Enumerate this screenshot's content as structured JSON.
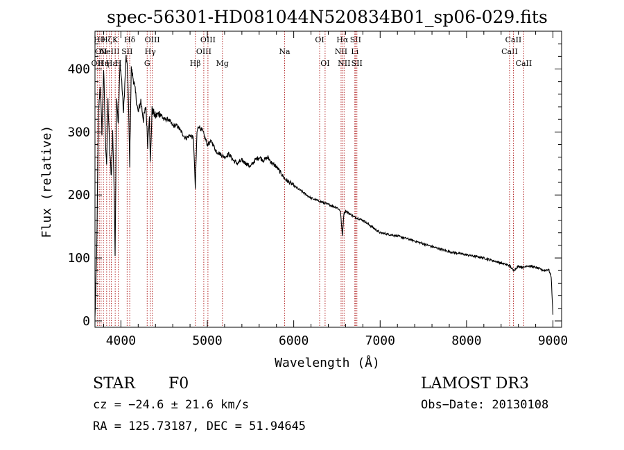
{
  "chart_data": {
    "type": "line",
    "title": "spec-56301-HD081044N520834B01_sp06-029.fits",
    "xlabel": "Wavelength (Å)",
    "ylabel": "Flux (relative)",
    "xlim": [
      3700,
      9100
    ],
    "ylim": [
      -10,
      460
    ],
    "xticks": [
      4000,
      5000,
      6000,
      7000,
      8000,
      9000
    ],
    "xtick_labels": [
      "4000",
      "5000",
      "6000",
      "7000",
      "8000",
      "9000"
    ],
    "yticks": [
      0,
      100,
      200,
      300,
      400
    ],
    "ytick_labels": [
      "0",
      "100",
      "200",
      "300",
      "400"
    ],
    "series": [
      {
        "name": "spectrum",
        "x": [
          3700,
          3720,
          3740,
          3760,
          3780,
          3800,
          3820,
          3835,
          3850,
          3870,
          3889,
          3905,
          3920,
          3933,
          3950,
          3970,
          3990,
          4010,
          4030,
          4060,
          4080,
          4102,
          4120,
          4150,
          4180,
          4200,
          4230,
          4260,
          4290,
          4310,
          4330,
          4340,
          4360,
          4380,
          4400,
          4450,
          4500,
          4550,
          4600,
          4650,
          4700,
          4750,
          4800,
          4840,
          4861,
          4880,
          4900,
          4950,
          5000,
          5050,
          5100,
          5150,
          5200,
          5250,
          5300,
          5350,
          5400,
          5450,
          5500,
          5550,
          5600,
          5650,
          5700,
          5750,
          5800,
          5850,
          5900,
          5950,
          6000,
          6100,
          6200,
          6300,
          6400,
          6500,
          6540,
          6563,
          6580,
          6600,
          6650,
          6700,
          6800,
          6900,
          7000,
          7200,
          7400,
          7600,
          7800,
          8000,
          8200,
          8400,
          8498,
          8542,
          8600,
          8662,
          8700,
          8800,
          8900,
          8950,
          8980,
          9000
        ],
        "y": [
          5,
          110,
          330,
          375,
          300,
          400,
          290,
          250,
          350,
          270,
          230,
          300,
          220,
          110,
          360,
          310,
          410,
          380,
          330,
          420,
          390,
          250,
          400,
          380,
          350,
          330,
          350,
          320,
          340,
          280,
          330,
          250,
          335,
          330,
          325,
          330,
          320,
          320,
          310,
          310,
          300,
          290,
          295,
          290,
          210,
          300,
          310,
          300,
          280,
          285,
          270,
          265,
          260,
          265,
          255,
          250,
          255,
          250,
          245,
          255,
          260,
          255,
          260,
          250,
          245,
          235,
          225,
          220,
          215,
          205,
          195,
          190,
          185,
          180,
          175,
          135,
          170,
          175,
          170,
          165,
          160,
          150,
          140,
          135,
          127,
          118,
          110,
          105,
          100,
          92,
          88,
          80,
          87,
          85,
          88,
          85,
          80,
          82,
          70,
          10
        ]
      }
    ],
    "line_markers": [
      {
        "wl": 3727,
        "label": "OII",
        "row": 3
      },
      {
        "wl": 3750,
        "label": "Hθ",
        "row": 1
      },
      {
        "wl": 3771,
        "label": "OII",
        "row": 2
      },
      {
        "wl": 3798,
        "label": "Hη",
        "row": 3
      },
      {
        "wl": 3835,
        "label": "Hζ",
        "row": 1
      },
      {
        "wl": 3869,
        "label": "NeIII",
        "row": 2
      },
      {
        "wl": 3889,
        "label": "Hε",
        "row": 3
      },
      {
        "wl": 3934,
        "label": "K",
        "row": 1
      },
      {
        "wl": 3970,
        "label": "H",
        "row": 3
      },
      {
        "wl": 4072,
        "label": "SII",
        "row": 2
      },
      {
        "wl": 4102,
        "label": "Hδ",
        "row": 1
      },
      {
        "wl": 4304,
        "label": "G",
        "row": 3
      },
      {
        "wl": 4340,
        "label": "Hγ",
        "row": 2
      },
      {
        "wl": 4363,
        "label": "OIII",
        "row": 1
      },
      {
        "wl": 4861,
        "label": "Hβ",
        "row": 3
      },
      {
        "wl": 4959,
        "label": "OIII",
        "row": 2
      },
      {
        "wl": 5007,
        "label": "OIII",
        "row": 1
      },
      {
        "wl": 5175,
        "label": "Mg",
        "row": 3
      },
      {
        "wl": 5894,
        "label": "Na",
        "row": 2
      },
      {
        "wl": 6300,
        "label": "OI",
        "row": 1
      },
      {
        "wl": 6363,
        "label": "OI",
        "row": 3
      },
      {
        "wl": 6548,
        "label": "NII",
        "row": 2
      },
      {
        "wl": 6563,
        "label": "Hα",
        "row": 1
      },
      {
        "wl": 6583,
        "label": "NII",
        "row": 3
      },
      {
        "wl": 6707,
        "label": "Li",
        "row": 2
      },
      {
        "wl": 6716,
        "label": "SII",
        "row": 1
      },
      {
        "wl": 6731,
        "label": "SII",
        "row": 3
      },
      {
        "wl": 8498,
        "label": "CaII",
        "row": 2
      },
      {
        "wl": 8542,
        "label": "CaII",
        "row": 1
      },
      {
        "wl": 8662,
        "label": "CaII",
        "row": 3
      }
    ],
    "marker_color": "#b22222",
    "line_color": "#000000"
  },
  "info": {
    "class": "STAR",
    "subclass": "F0",
    "survey": "LAMOST DR3",
    "cz": "cz = −24.6 ± 21.6 km/s",
    "obs_date": "Obs−Date: 20130108",
    "radec": "RA = 125.73187, DEC =  51.94645"
  }
}
